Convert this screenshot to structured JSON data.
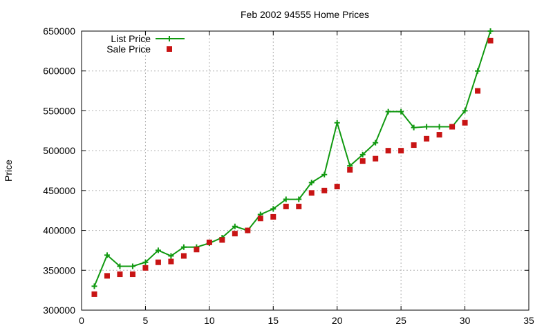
{
  "chart_data": {
    "type": "line",
    "title": "Feb 2002 94555 Home Prices",
    "xlabel": "",
    "ylabel": "Price",
    "xlim": [
      0,
      35
    ],
    "ylim": [
      300000,
      650000
    ],
    "xticks": [
      0,
      5,
      10,
      15,
      20,
      25,
      30,
      35
    ],
    "yticks": [
      300000,
      350000,
      400000,
      450000,
      500000,
      550000,
      600000,
      650000
    ],
    "grid": true,
    "legend_position": "top-left",
    "series": [
      {
        "name": "List Price",
        "style": "line-plus",
        "color": "#109910",
        "x": [
          1,
          2,
          3,
          4,
          5,
          6,
          7,
          8,
          9,
          10,
          11,
          12,
          13,
          14,
          15,
          16,
          17,
          18,
          19,
          20,
          21,
          22,
          23,
          24,
          25,
          26,
          27,
          28,
          29,
          30,
          31,
          32
        ],
        "values": [
          330000,
          369000,
          355000,
          355000,
          360000,
          375000,
          368000,
          379000,
          379000,
          384000,
          391000,
          405000,
          400000,
          420000,
          427000,
          439000,
          439000,
          460000,
          470000,
          535000,
          481000,
          495000,
          510000,
          549000,
          549000,
          529000,
          530000,
          530000,
          530000,
          550000,
          600000,
          650000
        ]
      },
      {
        "name": "Sale Price",
        "style": "square-markers",
        "color": "#c81414",
        "x": [
          1,
          2,
          3,
          4,
          5,
          6,
          7,
          8,
          9,
          10,
          11,
          12,
          13,
          14,
          15,
          16,
          17,
          18,
          19,
          20,
          21,
          22,
          23,
          24,
          25,
          26,
          27,
          28,
          29,
          30,
          31,
          32
        ],
        "values": [
          320000,
          343000,
          345000,
          345000,
          353000,
          360000,
          361000,
          368000,
          376000,
          385000,
          388000,
          396000,
          400000,
          415000,
          417000,
          430000,
          430000,
          447000,
          450000,
          455000,
          476000,
          487000,
          490000,
          500000,
          500000,
          507000,
          515000,
          520000,
          530000,
          535000,
          575000,
          638000
        ]
      }
    ]
  }
}
